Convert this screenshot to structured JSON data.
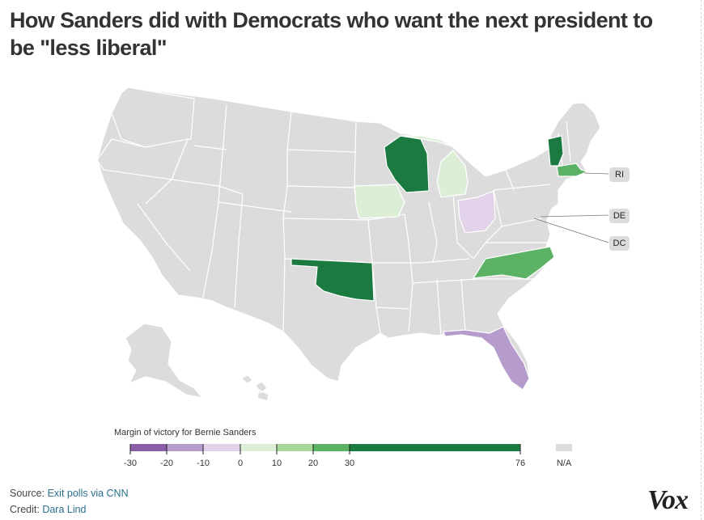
{
  "title": "How Sanders did with Democrats who want the next president to be \"less liberal\"",
  "legend": {
    "title": "Margin of victory for Bernie Sanders",
    "ticks": [
      "-30",
      "-20",
      "-10",
      "0",
      "10",
      "20",
      "30",
      "76"
    ],
    "na_label": "N/A",
    "colors": {
      "m30_m20": "#8b5fa8",
      "m20_m10": "#b69bcd",
      "m10_0": "#e3d3ea",
      "p0_10": "#dcefd6",
      "p10_20": "#a6d89a",
      "p20_30": "#5bb164",
      "p30_76": "#1a7a3f",
      "na": "#dcdcdc"
    }
  },
  "callouts": {
    "ri": "RI",
    "de": "DE",
    "dc": "DC"
  },
  "states": {
    "wisconsin": "p30_76",
    "vermont": "p30_76",
    "oklahoma": "p30_76",
    "north_carolina": "p20_30",
    "massachusetts": "p20_30",
    "iowa": "p0_10",
    "michigan": "p0_10",
    "ohio": "m10_0",
    "florida": "m20_m10"
  },
  "footer": {
    "source_label": "Source:",
    "source_text": "Exit polls via CNN",
    "credit_label": "Credit:",
    "credit_text": "Dara Lind"
  },
  "logo": "Vox"
}
